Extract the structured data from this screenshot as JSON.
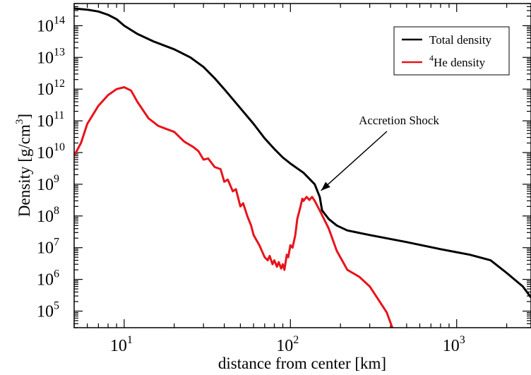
{
  "chart_data": {
    "type": "line",
    "title": "",
    "xlabel": "distance from center [km]",
    "ylabel_main": "Density  [g/cm",
    "ylabel_sup": "3",
    "ylabel_close": "]",
    "x_scale": "log",
    "y_scale": "log",
    "xlim": [
      5,
      2800
    ],
    "ylim": [
      30000,
      500000000000000
    ],
    "grid": false,
    "legend_position": "top-right",
    "x_ticks": [
      {
        "value": 10,
        "base": "10",
        "exp": "1"
      },
      {
        "value": 100,
        "base": "10",
        "exp": "2"
      },
      {
        "value": 1000,
        "base": "10",
        "exp": "3"
      }
    ],
    "y_ticks": [
      {
        "value": 100000,
        "base": "10",
        "exp": "5"
      },
      {
        "value": 1000000,
        "base": "10",
        "exp": "6"
      },
      {
        "value": 10000000,
        "base": "10",
        "exp": "7"
      },
      {
        "value": 100000000,
        "base": "10",
        "exp": "8"
      },
      {
        "value": 1000000000,
        "base": "10",
        "exp": "9"
      },
      {
        "value": 10000000000,
        "base": "10",
        "exp": "10"
      },
      {
        "value": 100000000000,
        "base": "10",
        "exp": "11"
      },
      {
        "value": 1000000000000,
        "base": "10",
        "exp": "12"
      },
      {
        "value": 10000000000000,
        "base": "10",
        "exp": "13"
      },
      {
        "value": 100000000000000,
        "base": "10",
        "exp": "14"
      }
    ],
    "series": [
      {
        "name": "Total density",
        "color": "#000000",
        "x": [
          5,
          6,
          7,
          8,
          9,
          10,
          12,
          15,
          20,
          25,
          30,
          35,
          40,
          50,
          60,
          70,
          80,
          90,
          100,
          120,
          140,
          150,
          155,
          170,
          190,
          220,
          300,
          500,
          800,
          1200,
          1600,
          2000,
          2500,
          2800
        ],
        "y": [
          350000000000000.0,
          320000000000000.0,
          280000000000000.0,
          220000000000000.0,
          160000000000000.0,
          100000000000000.0,
          55000000000000.0,
          32000000000000.0,
          18000000000000.0,
          10000000000000.0,
          5000000000000.0,
          2200000000000.0,
          1000000000000.0,
          250000000000.0,
          80000000000.0,
          28000000000.0,
          13000000000.0,
          7000000000.0,
          4500000000.0,
          2300000000.0,
          1000000000.0,
          400000000.0,
          150000000.0,
          80000000.0,
          50000000.0,
          35000000.0,
          25000000.0,
          15000000.0,
          9000000.0,
          6000000.0,
          4000000.0,
          1600000.0,
          600000.0,
          270000.0
        ]
      },
      {
        "name": "He density",
        "name_sup": "4",
        "color": "#e8131b",
        "x": [
          5,
          5.5,
          6,
          7,
          8,
          9,
          10,
          11,
          12,
          14,
          16,
          18,
          20,
          23,
          26,
          28,
          30,
          32,
          35,
          38,
          40,
          42,
          45,
          47,
          50,
          52,
          55,
          58,
          60,
          65,
          70,
          73,
          75,
          78,
          80,
          83,
          85,
          88,
          90,
          92,
          95,
          97,
          100,
          103,
          107,
          110,
          115,
          118,
          120,
          125,
          130,
          135,
          140,
          150,
          170,
          190,
          220,
          260,
          300,
          340,
          380,
          410
        ],
        "y": [
          8000000000.0,
          20000000000.0,
          80000000000.0,
          300000000000.0,
          650000000000.0,
          1000000000000.0,
          1150000000000.0,
          900000000000.0,
          400000000000.0,
          120000000000.0,
          70000000000.0,
          55000000000.0,
          45000000000.0,
          22000000000.0,
          15000000000.0,
          11000000000.0,
          6000000000.0,
          6500000000.0,
          3500000000.0,
          3000000000.0,
          1200000000.0,
          1400000000.0,
          600000000.0,
          700000000.0,
          200000000.0,
          250000000.0,
          100000000.0,
          50000000.0,
          25000000.0,
          12000000.0,
          5000000.0,
          4000000.0,
          5500000.0,
          3000000.0,
          4000000.0,
          2500000.0,
          3500000.0,
          2200000.0,
          3000000.0,
          2000000.0,
          6000000.0,
          5000000.0,
          12000000.0,
          10000000.0,
          25000000.0,
          80000000.0,
          200000000.0,
          350000000.0,
          300000000.0,
          400000000.0,
          320000000.0,
          400000000.0,
          300000000.0,
          150000000.0,
          40000000.0,
          8000000.0,
          2000000.0,
          1200000.0,
          600000.0,
          220000.0,
          90000.0,
          30000.0
        ]
      }
    ],
    "annotations": [
      {
        "text": "Accretion Shock",
        "arrow_to_x": 150,
        "arrow_to_y": 700000000.0
      }
    ]
  }
}
